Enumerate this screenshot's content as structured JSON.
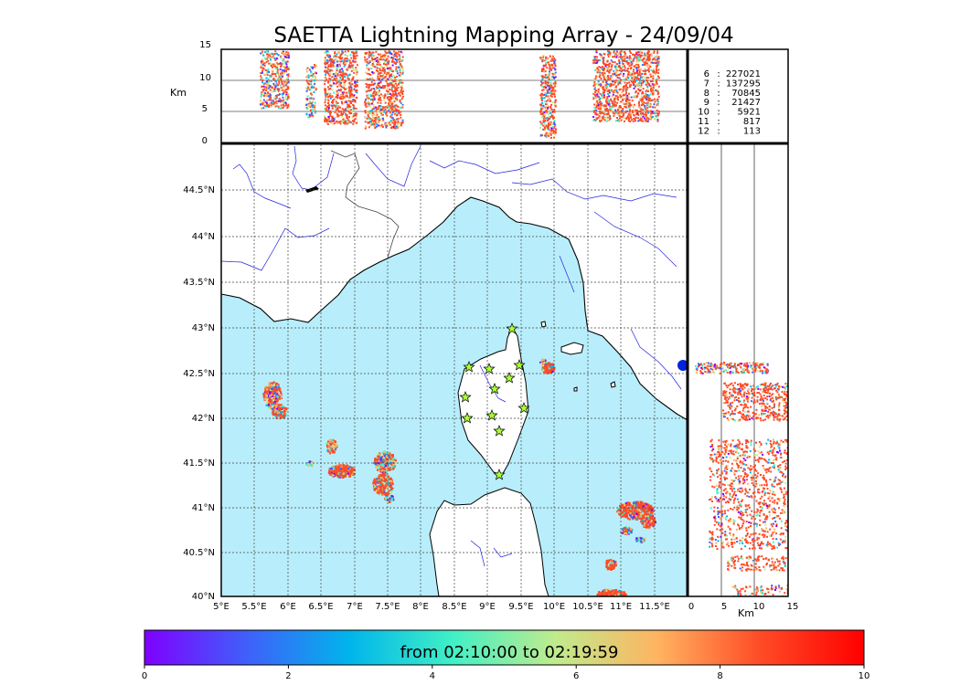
{
  "title": "SAETTA Lightning Mapping Array - 24/09/04",
  "altitude_axis": {
    "unit": "Km",
    "ticks": [
      "15",
      "10",
      "5",
      "0"
    ]
  },
  "map": {
    "lat_ticks": [
      "44.5°N",
      "44°N",
      "43.5°N",
      "43°N",
      "42.5°N",
      "42°N",
      "41.5°N",
      "41°N",
      "40.5°N",
      "40°N"
    ],
    "lon_ticks": [
      "5°E",
      "5.5°E",
      "6°E",
      "6.5°E",
      "7°E",
      "7.5°E",
      "8°E",
      "8.5°E",
      "9°E",
      "9.5°E",
      "10°E",
      "10.5°E",
      "11°E",
      "11.5°E"
    ],
    "sea_color": "#b8eefb",
    "land_color": "#ffffff",
    "river_color": "#2222dd",
    "sensor_color": "#a8ff33"
  },
  "side_panel": {
    "unit": "Km",
    "ticks": [
      "0",
      "5",
      "10",
      "15"
    ]
  },
  "stats": [
    {
      "count": "6",
      "sep": ":",
      "value": "227021",
      "highlight": false
    },
    {
      "count": "7",
      "sep": ":",
      "value": "137295",
      "highlight": true
    },
    {
      "count": "8",
      "sep": ":",
      "value": "70845",
      "highlight": false
    },
    {
      "count": "9",
      "sep": ":",
      "value": "21427",
      "highlight": false
    },
    {
      "count": "10",
      "sep": ":",
      "value": "5921",
      "highlight": false
    },
    {
      "count": "11",
      "sep": ":",
      "value": "817",
      "highlight": false
    },
    {
      "count": "12",
      "sep": ":",
      "value": "113",
      "highlight": false
    }
  ],
  "colorbar": {
    "label": "from 02:10:00 to 02:19:59",
    "ticks": [
      "0",
      "2",
      "4",
      "6",
      "8",
      "10"
    ],
    "colors": [
      "#7f00ff",
      "#3f60fa",
      "#00b5eb",
      "#41f0c6",
      "#c0eb8d",
      "#ffb360",
      "#ff4a26",
      "#ff0000"
    ]
  }
}
